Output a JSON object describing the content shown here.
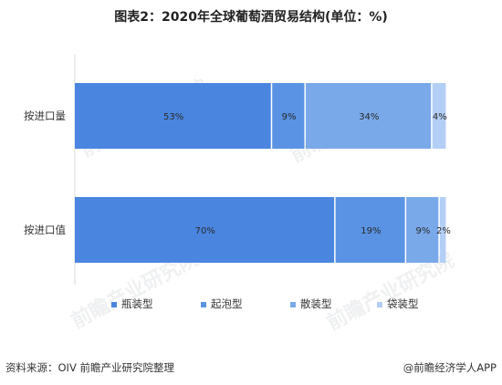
{
  "title": "图表2：2020年全球葡萄酒贸易结构(单位：%)",
  "footer": {
    "source": "资料来源：OIV 前瞻产业研究院整理",
    "credit": "@前瞻经济学人APP"
  },
  "watermark": "前瞻产业研究院",
  "colors": {
    "bottle": "#4a86e0",
    "sparkling": "#5a93e3",
    "bulk": "#7aa9ea",
    "bag": "#b4cff5",
    "axis": "#d8d8d8",
    "label": "#333333",
    "barlabel": "#2a2a2a"
  },
  "chart_data": {
    "type": "bar",
    "orientation": "horizontal",
    "stacked": true,
    "categories": [
      "按进口量",
      "按进口值"
    ],
    "series": [
      {
        "name": "瓶装型",
        "values": [
          53,
          70
        ],
        "color": "#4a86e0"
      },
      {
        "name": "起泡型",
        "values": [
          9,
          19
        ],
        "color": "#5a93e3"
      },
      {
        "name": "散装型",
        "values": [
          34,
          9
        ],
        "color": "#7aa9ea"
      },
      {
        "name": "袋装型",
        "values": [
          4,
          2
        ],
        "color": "#b4cff5"
      }
    ],
    "value_labels": [
      [
        "53%",
        "9%",
        "34%",
        "4%"
      ],
      [
        "70%",
        "19%",
        "9%",
        "2%"
      ]
    ],
    "xlim": [
      0,
      100
    ],
    "legend": "bottom",
    "grid": false
  }
}
